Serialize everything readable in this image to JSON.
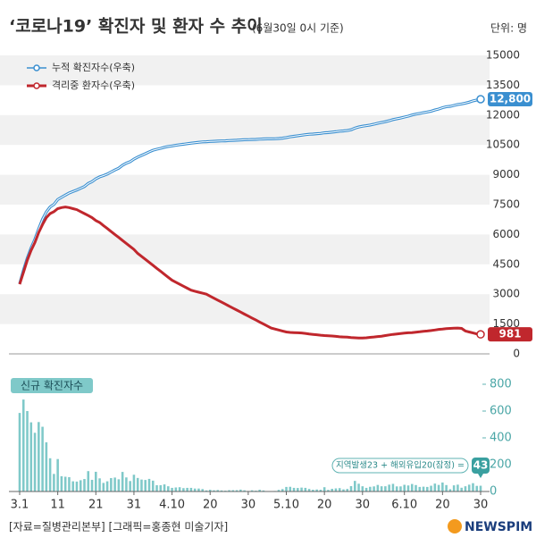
{
  "chart_data": [
    {
      "type": "line",
      "title": "‘코로나19’ 확진자 및 환자 수 추이",
      "subtitle": "(6월30일 0시 기준)",
      "unit_label": "단위: 명",
      "ylim": [
        0,
        15000
      ],
      "yticks": [
        0,
        1500,
        3000,
        4500,
        6000,
        7500,
        9000,
        10500,
        12000,
        13500,
        15000
      ],
      "bands": true,
      "series": [
        {
          "name": "누적 확진자수(우축)",
          "color": "#3a8fd0",
          "values": [
            3526,
            4212,
            4812,
            5328,
            5766,
            6284,
            6767,
            7134,
            7382,
            7513,
            7755,
            7869,
            7979,
            8086,
            8162,
            8236,
            8320,
            8413,
            8565,
            8652,
            8799,
            8897,
            8961,
            9037,
            9137,
            9241,
            9332,
            9478,
            9583,
            9661,
            9786,
            9887,
            9976,
            10062,
            10156,
            10237,
            10284,
            10331,
            10384,
            10423,
            10450,
            10480,
            10512,
            10537,
            10564,
            10591,
            10613,
            10635,
            10653,
            10661,
            10674,
            10683,
            10694,
            10702,
            10708,
            10718,
            10728,
            10738,
            10752,
            10761,
            10765,
            10774,
            10780,
            10793,
            10801,
            10804,
            10806,
            10810,
            10822,
            10840,
            10874,
            10909,
            10936,
            10962,
            10991,
            11018,
            11037,
            11050,
            11065,
            11078,
            11110,
            11122,
            11142,
            11165,
            11190,
            11206,
            11225,
            11265,
            11344,
            11402,
            11441,
            11468,
            11503,
            11541,
            11590,
            11629,
            11668,
            11719,
            11776,
            11814,
            11852,
            11902,
            11947,
            12003,
            12051,
            12085,
            12121,
            12155,
            12198,
            12257,
            12306,
            12373,
            12421,
            12438,
            12484,
            12535,
            12563,
            12602,
            12653,
            12715,
            12757,
            12800
          ],
          "value_labels": [
            null,
            null,
            null,
            null,
            null,
            null,
            null,
            null,
            null,
            null,
            null,
            null,
            null,
            null,
            null,
            null,
            null,
            null,
            null,
            null,
            null,
            null,
            null,
            null,
            null,
            null,
            null,
            null,
            null,
            null,
            null,
            null,
            null,
            null,
            null,
            null,
            null,
            null,
            null,
            null,
            null,
            null,
            null,
            null,
            null,
            null,
            null,
            null,
            null,
            null,
            null,
            null,
            null,
            null,
            null,
            null,
            null,
            null,
            null,
            null,
            null,
            null,
            null,
            null,
            null,
            null,
            null,
            null,
            null,
            null,
            null,
            null,
            null,
            null,
            null,
            null,
            null,
            null,
            null,
            null,
            null,
            null,
            null,
            null,
            null,
            null,
            null,
            null,
            null,
            null,
            null,
            null,
            null,
            null,
            null,
            null,
            null,
            null,
            null,
            null,
            null,
            null,
            null,
            null,
            null,
            null,
            null,
            null,
            null,
            null,
            null,
            null,
            null,
            null,
            null,
            null,
            null,
            null,
            null,
            null,
            null,
            "12,800"
          ]
        },
        {
          "name": "격리중 환자수(우축)",
          "color": "#c0272d",
          "values": [
            3500,
            4100,
            4700,
            5200,
            5600,
            6100,
            6500,
            6850,
            7050,
            7150,
            7300,
            7350,
            7380,
            7350,
            7300,
            7250,
            7150,
            7050,
            6950,
            6850,
            6700,
            6600,
            6450,
            6300,
            6150,
            6000,
            5850,
            5700,
            5550,
            5400,
            5250,
            5050,
            4900,
            4750,
            4600,
            4450,
            4300,
            4150,
            4000,
            3850,
            3700,
            3600,
            3500,
            3400,
            3300,
            3200,
            3150,
            3100,
            3050,
            3000,
            2900,
            2800,
            2700,
            2600,
            2500,
            2400,
            2300,
            2200,
            2100,
            2000,
            1900,
            1800,
            1700,
            1600,
            1500,
            1400,
            1300,
            1250,
            1200,
            1150,
            1100,
            1080,
            1070,
            1060,
            1050,
            1030,
            1000,
            980,
            960,
            940,
            920,
            910,
            900,
            880,
            860,
            850,
            840,
            820,
            810,
            800,
            800,
            810,
            830,
            850,
            870,
            890,
            920,
            950,
            980,
            1000,
            1020,
            1040,
            1060,
            1070,
            1090,
            1110,
            1130,
            1150,
            1170,
            1200,
            1230,
            1250,
            1270,
            1280,
            1290,
            1300,
            1280,
            1150,
            1100,
            1050,
            1000,
            981
          ]
        }
      ]
    },
    {
      "type": "bar",
      "label": "신규 확진자수",
      "color": "#7fc9c9",
      "ylim": [
        0,
        800
      ],
      "yticks": [
        0,
        200,
        400,
        600,
        800
      ],
      "annotation": "지역발생23 + 해외유입20(잠정) =",
      "categories": [
        "3.1",
        null,
        null,
        null,
        null,
        null,
        null,
        null,
        null,
        null,
        "11",
        null,
        null,
        null,
        null,
        null,
        null,
        null,
        null,
        null,
        "21",
        null,
        null,
        null,
        null,
        null,
        null,
        null,
        null,
        null,
        "31",
        null,
        null,
        null,
        null,
        null,
        null,
        null,
        null,
        null,
        "4.10",
        null,
        null,
        null,
        null,
        null,
        null,
        null,
        null,
        null,
        "20",
        null,
        null,
        null,
        null,
        null,
        null,
        null,
        null,
        null,
        "30",
        null,
        null,
        null,
        null,
        null,
        null,
        null,
        null,
        null,
        "5.10",
        null,
        null,
        null,
        null,
        null,
        null,
        null,
        null,
        null,
        "20",
        null,
        null,
        null,
        null,
        null,
        null,
        null,
        null,
        null,
        "30",
        null,
        null,
        null,
        null,
        null,
        null,
        null,
        null,
        null,
        null,
        "6.10",
        null,
        null,
        null,
        null,
        null,
        null,
        null,
        null,
        null,
        "20",
        null,
        null,
        null,
        null,
        null,
        null,
        null,
        null,
        null,
        "30"
      ],
      "values": [
        586,
        686,
        600,
        516,
        438,
        518,
        483,
        367,
        248,
        131,
        242,
        114,
        110,
        107,
        76,
        74,
        84,
        93,
        152,
        87,
        147,
        98,
        64,
        76,
        100,
        104,
        91,
        146,
        105,
        78,
        125,
        101,
        89,
        86,
        94,
        81,
        47,
        47,
        53,
        39,
        27,
        30,
        32,
        25,
        27,
        27,
        22,
        22,
        18,
        8,
        13,
        9,
        11,
        8,
        6,
        10,
        10,
        10,
        14,
        9,
        4,
        9,
        6,
        13,
        8,
        3,
        2,
        4,
        12,
        18,
        34,
        35,
        27,
        26,
        29,
        27,
        19,
        13,
        15,
        13,
        32,
        12,
        20,
        23,
        25,
        16,
        19,
        40,
        79,
        58,
        39,
        27,
        35,
        38,
        49,
        39,
        39,
        51,
        57,
        38,
        38,
        50,
        45,
        56,
        48,
        34,
        36,
        34,
        43,
        59,
        49,
        67,
        48,
        17,
        46,
        51,
        28,
        39,
        51,
        62,
        42,
        43
      ]
    }
  ],
  "footer": {
    "source": "[자료=질병관리본부] [그래픽=홍종현 미술기자]",
    "logo": "NEWSPIM"
  }
}
